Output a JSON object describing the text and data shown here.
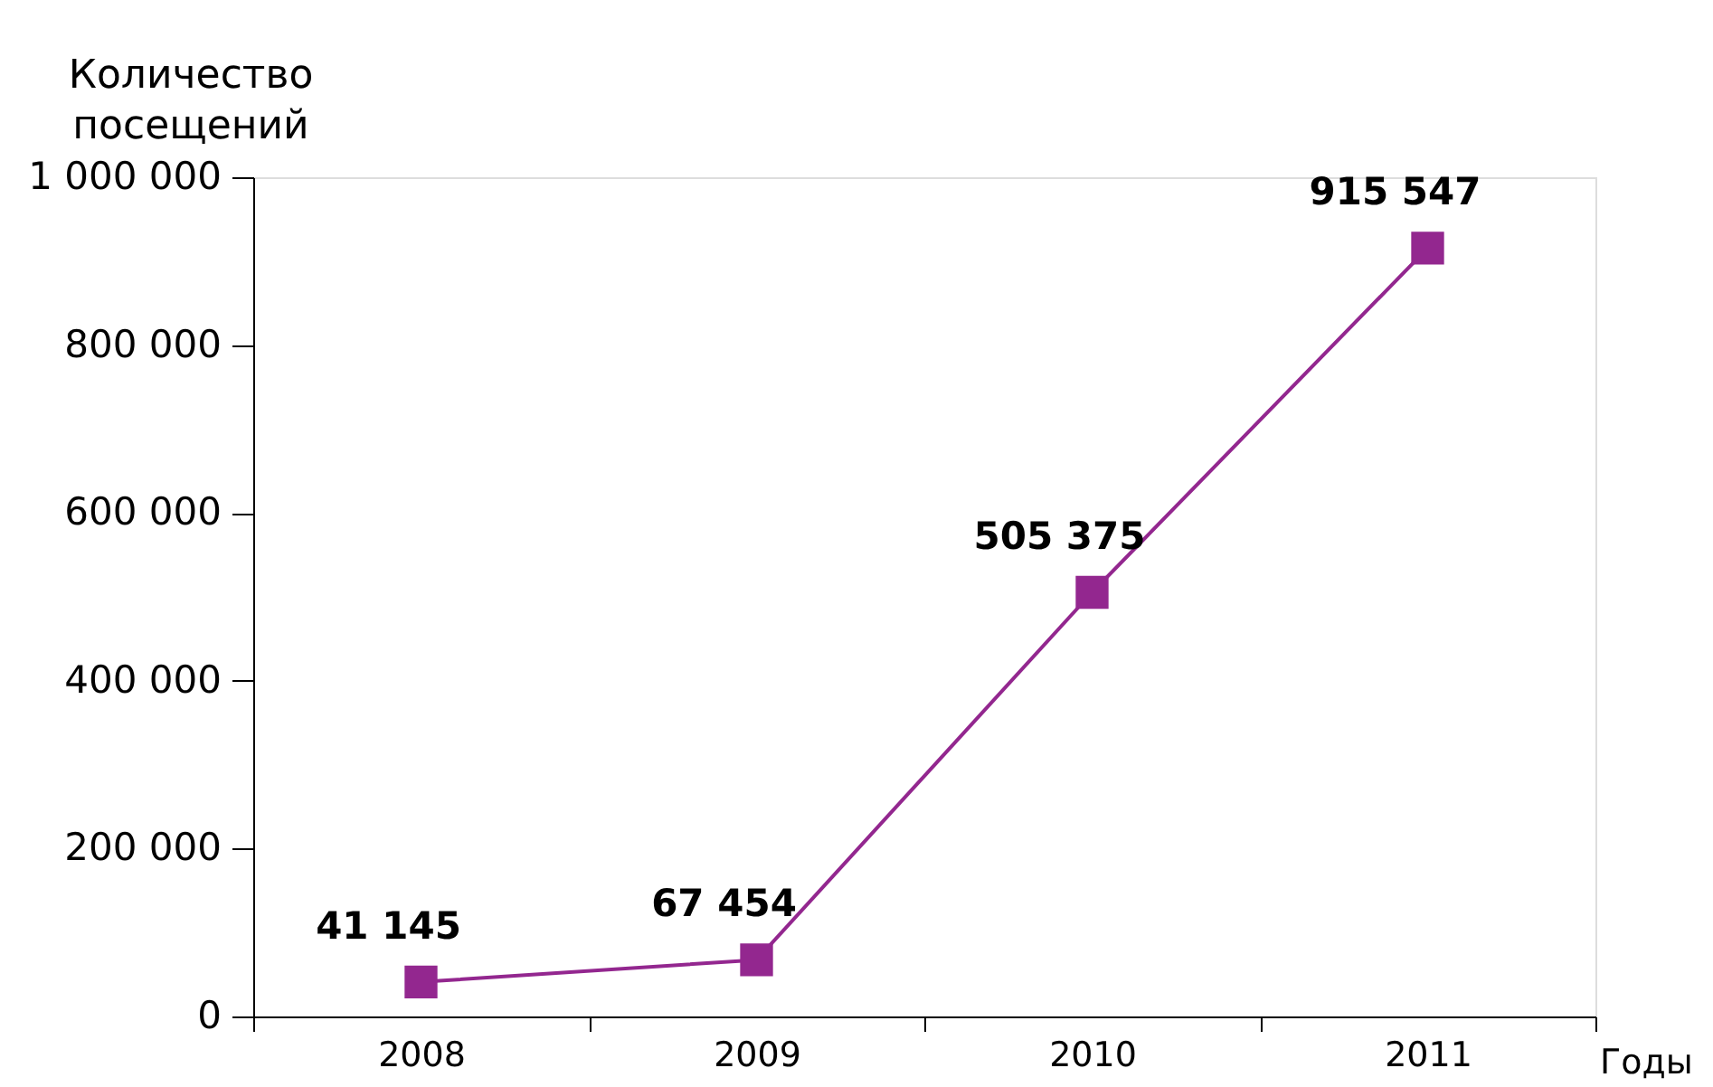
{
  "chart_data": {
    "type": "line",
    "categories": [
      "2008",
      "2009",
      "2010",
      "2011"
    ],
    "series": [
      {
        "color": "#93278f",
        "values": [
          41145,
          67454,
          505375,
          915547
        ],
        "value_labels": [
          "41 145",
          "67 454",
          "505 375",
          "915 547"
        ]
      }
    ],
    "ylim": [
      0,
      1000000
    ],
    "yticks": [
      {
        "value": 0,
        "label": "0"
      },
      {
        "value": 200000,
        "label": "200 000"
      },
      {
        "value": 400000,
        "label": "400 000"
      },
      {
        "value": 600000,
        "label": "600 000"
      },
      {
        "value": 800000,
        "label": "800 000"
      },
      {
        "value": 1000000,
        "label": "1 000 000"
      }
    ],
    "xlabel": "Годы",
    "ylabel": "Количество посещений",
    "marker": "square",
    "line_style": "solid"
  }
}
